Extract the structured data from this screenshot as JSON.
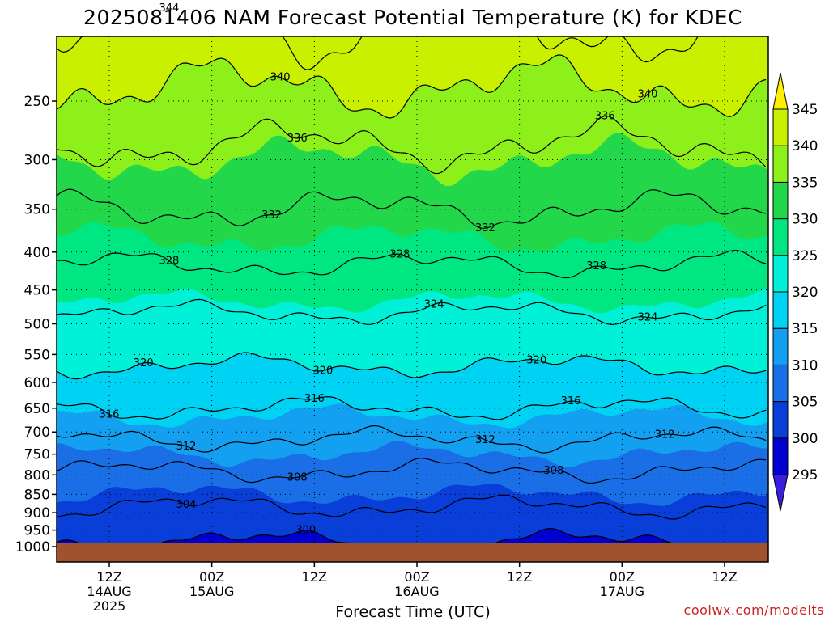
{
  "chart_data": {
    "type": "heatmap",
    "title": "2025081406 NAM Forecast Potential Temperature (K) for KDEC",
    "xlabel": "Forecast Time (UTC)",
    "ylabel": "",
    "credit": "coolwx.com/modelts",
    "x_ticks": [
      {
        "hour": 6,
        "label": "12Z",
        "date": "14AUG",
        "year": "2025"
      },
      {
        "hour": 18,
        "label": "00Z",
        "date": "15AUG",
        "year": ""
      },
      {
        "hour": 30,
        "label": "12Z",
        "date": "",
        "year": ""
      },
      {
        "hour": 42,
        "label": "00Z",
        "date": "16AUG",
        "year": ""
      },
      {
        "hour": 54,
        "label": "12Z",
        "date": "",
        "year": ""
      },
      {
        "hour": 66,
        "label": "00Z",
        "date": "17AUG",
        "year": ""
      },
      {
        "hour": 78,
        "label": "12Z",
        "date": "",
        "year": ""
      }
    ],
    "xlim": [
      0,
      84
    ],
    "y_ticks": [
      250,
      300,
      350,
      400,
      450,
      500,
      550,
      600,
      650,
      700,
      750,
      800,
      850,
      900,
      950,
      1000
    ],
    "ylim": [
      200,
      1000
    ],
    "y_scale": "log-pressure",
    "ground_color": "#a0522d",
    "colorbar": {
      "levels": [
        "295",
        "300",
        "305",
        "310",
        "315",
        "320",
        "325",
        "330",
        "335",
        "340",
        "345"
      ],
      "colors": [
        "#3a1ee0",
        "#0000d0",
        "#0a3ed8",
        "#1a6ee6",
        "#14a0f0",
        "#00d2f4",
        "#00f0d8",
        "#00e680",
        "#22d84a",
        "#8ef01a",
        "#c8f000",
        "#fff000"
      ]
    },
    "contours": [
      {
        "level": 300,
        "label": "300",
        "label_hour": 29
      },
      {
        "level": 304,
        "label": "304",
        "label_hour": 15
      },
      {
        "level": 308,
        "label": "308",
        "label_hour": 28
      },
      {
        "level": 308,
        "label": "308",
        "label_hour": 58
      },
      {
        "level": 312,
        "label": "312",
        "label_hour": 15
      },
      {
        "level": 312,
        "label": "312",
        "label_hour": 50
      },
      {
        "level": 312,
        "label": "312",
        "label_hour": 71
      },
      {
        "level": 316,
        "label": "316",
        "label_hour": 6
      },
      {
        "level": 316,
        "label": "316",
        "label_hour": 30
      },
      {
        "level": 316,
        "label": "316",
        "label_hour": 60
      },
      {
        "level": 320,
        "label": "320",
        "label_hour": 10
      },
      {
        "level": 320,
        "label": "320",
        "label_hour": 31
      },
      {
        "level": 320,
        "label": "320",
        "label_hour": 56
      },
      {
        "level": 324,
        "label": "324",
        "label_hour": 44
      },
      {
        "level": 324,
        "label": "324",
        "label_hour": 69
      },
      {
        "level": 328,
        "label": "328",
        "label_hour": 13
      },
      {
        "level": 328,
        "label": "328",
        "label_hour": 40
      },
      {
        "level": 328,
        "label": "328",
        "label_hour": 63
      },
      {
        "level": 332,
        "label": "332",
        "label_hour": 25
      },
      {
        "level": 332,
        "label": "332",
        "label_hour": 50
      },
      {
        "level": 336,
        "label": "336",
        "label_hour": 28
      },
      {
        "level": 336,
        "label": "336",
        "label_hour": 64
      },
      {
        "level": 340,
        "label": "340",
        "label_hour": 26
      },
      {
        "level": 340,
        "label": "340",
        "label_hour": 69
      },
      {
        "level": 344,
        "label": "344",
        "label_hour": 13
      }
    ],
    "legend": "right colorbar"
  }
}
